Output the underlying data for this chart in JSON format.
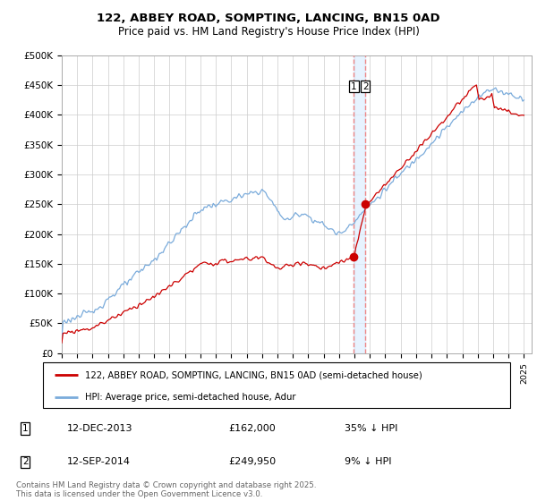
{
  "title": "122, ABBEY ROAD, SOMPTING, LANCING, BN15 0AD",
  "subtitle": "Price paid vs. HM Land Registry's House Price Index (HPI)",
  "ylim": [
    0,
    500000
  ],
  "yticks": [
    0,
    50000,
    100000,
    150000,
    200000,
    250000,
    300000,
    350000,
    400000,
    450000,
    500000
  ],
  "ytick_labels": [
    "£0",
    "£50K",
    "£100K",
    "£150K",
    "£200K",
    "£250K",
    "£300K",
    "£350K",
    "£400K",
    "£450K",
    "£500K"
  ],
  "xlim_start": 1995.0,
  "xlim_end": 2025.5,
  "sale1_x": 2013.96,
  "sale1_y": 162000,
  "sale2_x": 2014.71,
  "sale2_y": 249950,
  "sale1_label": "1",
  "sale2_label": "2",
  "red_line_color": "#cc0000",
  "blue_line_color": "#7aabdb",
  "vline_color": "#ee8888",
  "shade_color": "#ddeeff",
  "dot_color": "#cc0000",
  "legend_label_red": "122, ABBEY ROAD, SOMPTING, LANCING, BN15 0AD (semi-detached house)",
  "legend_label_blue": "HPI: Average price, semi-detached house, Adur",
  "annot1_num": "1",
  "annot1_date": "12-DEC-2013",
  "annot1_price": "£162,000",
  "annot1_hpi": "35% ↓ HPI",
  "annot2_num": "2",
  "annot2_date": "12-SEP-2014",
  "annot2_price": "£249,950",
  "annot2_hpi": "9% ↓ HPI",
  "footer": "Contains HM Land Registry data © Crown copyright and database right 2025.\nThis data is licensed under the Open Government Licence v3.0.",
  "background_color": "#ffffff",
  "grid_color": "#cccccc"
}
